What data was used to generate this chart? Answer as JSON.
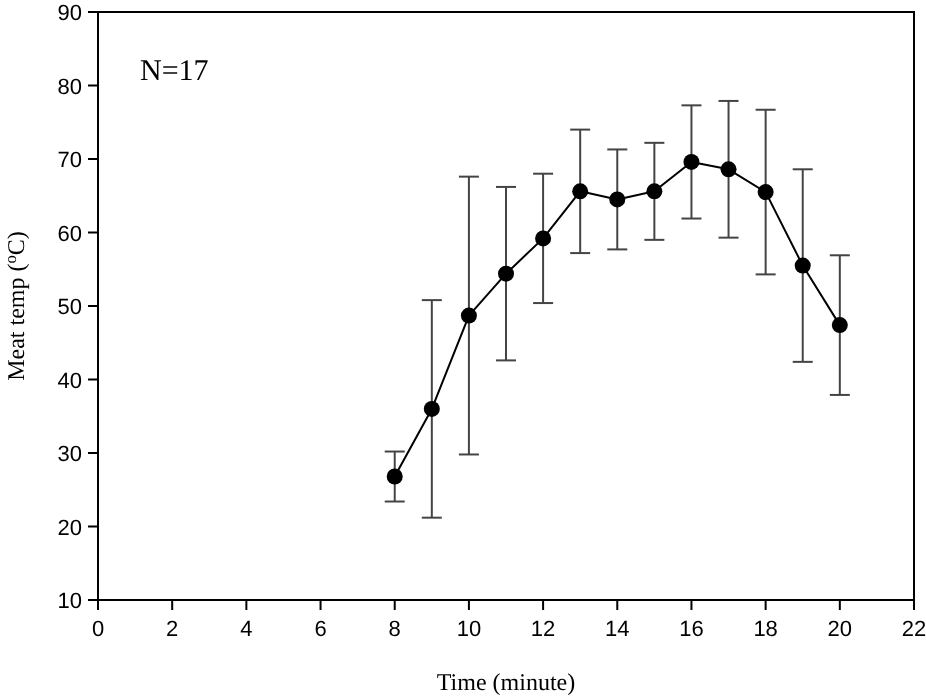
{
  "chart_data": {
    "type": "line",
    "xlabel": "Time (minute)",
    "ylabel": "Meat temp ($^{o}$C)",
    "annotations": [
      "N=17"
    ],
    "x": [
      8,
      9,
      10,
      11,
      12,
      13,
      14,
      15,
      16,
      17,
      18,
      19,
      20
    ],
    "values": [
      26.8,
      36,
      48.7,
      54.4,
      59.2,
      65.6,
      64.5,
      65.6,
      69.6,
      68.6,
      65.5,
      55.5,
      47.4
    ],
    "errors": [
      3.4,
      14.8,
      18.9,
      11.8,
      8.8,
      8.4,
      6.8,
      6.6,
      7.7,
      9.3,
      11.2,
      13.1,
      9.5
    ],
    "color": "#000000",
    "marker": "circle",
    "line_style": "solid",
    "xlim": [
      0,
      22
    ],
    "xticks": [
      0,
      2,
      4,
      6,
      8,
      10,
      12,
      14,
      16,
      18,
      20,
      22
    ],
    "ylim": [
      10,
      90
    ],
    "yticks": [
      10,
      20,
      30,
      40,
      50,
      60,
      70,
      80,
      90
    ],
    "grid": false
  }
}
